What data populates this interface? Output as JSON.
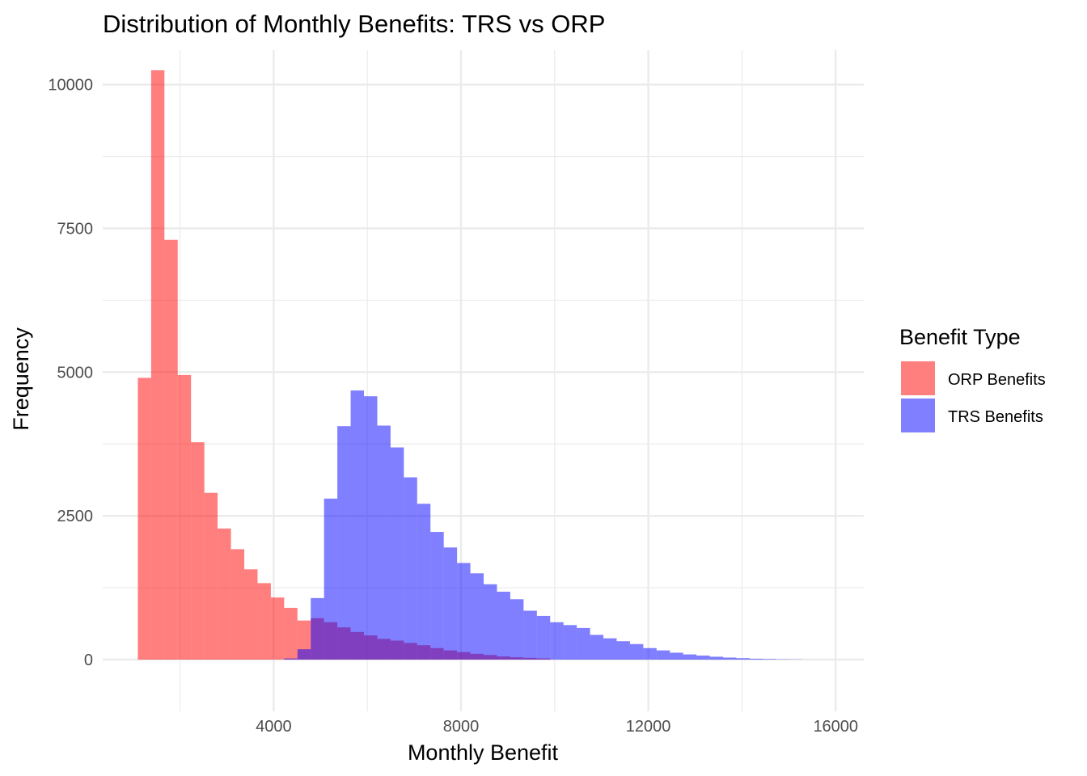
{
  "chart_data": {
    "type": "histogram",
    "title": "Distribution of Monthly Benefits: TRS vs ORP",
    "xlabel": "Monthly Benefit",
    "ylabel": "Frequency",
    "xlim": [
      350,
      16600
    ],
    "ylim": [
      -900,
      10600
    ],
    "x_ticks": [
      4000,
      8000,
      12000,
      16000
    ],
    "x_tick_labels": [
      "4000",
      "8000",
      "12000",
      "16000"
    ],
    "y_ticks": [
      0,
      2500,
      5000,
      7500,
      10000
    ],
    "y_tick_labels": [
      "0",
      "2500",
      "5000",
      "7500",
      "10000"
    ],
    "grid": true,
    "legend": {
      "title": "Benefit Type",
      "position": "right"
    },
    "bin_width": 284,
    "series": [
      {
        "name": "ORP Benefits",
        "color": "#ff0000",
        "opacity": 0.5,
        "bin_starts": [
          1100,
          1384,
          1668,
          1952,
          2236,
          2520,
          2804,
          3088,
          3372,
          3656,
          3940,
          4224,
          4508,
          4792,
          5076,
          5360,
          5644,
          5928,
          6212,
          6496,
          6780,
          7064,
          7348,
          7632,
          7916,
          8200,
          8484,
          8768,
          9052,
          9336,
          9620
        ],
        "counts": [
          4900,
          10250,
          7300,
          4950,
          3780,
          2900,
          2280,
          1920,
          1570,
          1330,
          1080,
          900,
          680,
          720,
          650,
          560,
          480,
          420,
          360,
          330,
          290,
          250,
          200,
          160,
          130,
          100,
          80,
          55,
          40,
          30,
          20
        ]
      },
      {
        "name": "TRS Benefits",
        "color": "#0000ff",
        "opacity": 0.5,
        "bin_starts": [
          4224,
          4508,
          4792,
          5076,
          5360,
          5644,
          5928,
          6212,
          6496,
          6780,
          7064,
          7348,
          7632,
          7916,
          8200,
          8484,
          8768,
          9052,
          9336,
          9620,
          9904,
          10188,
          10472,
          10756,
          11040,
          11324,
          11608,
          11892,
          12176,
          12460,
          12744,
          13028,
          13312,
          13596,
          13880,
          14164,
          14448,
          14732,
          15016
        ],
        "counts": [
          20,
          180,
          1070,
          2800,
          4060,
          4680,
          4580,
          4070,
          3690,
          3170,
          2710,
          2220,
          1950,
          1680,
          1500,
          1310,
          1180,
          1050,
          850,
          760,
          650,
          600,
          550,
          430,
          370,
          320,
          270,
          200,
          160,
          120,
          90,
          70,
          50,
          35,
          25,
          15,
          10,
          5,
          3
        ]
      }
    ]
  }
}
